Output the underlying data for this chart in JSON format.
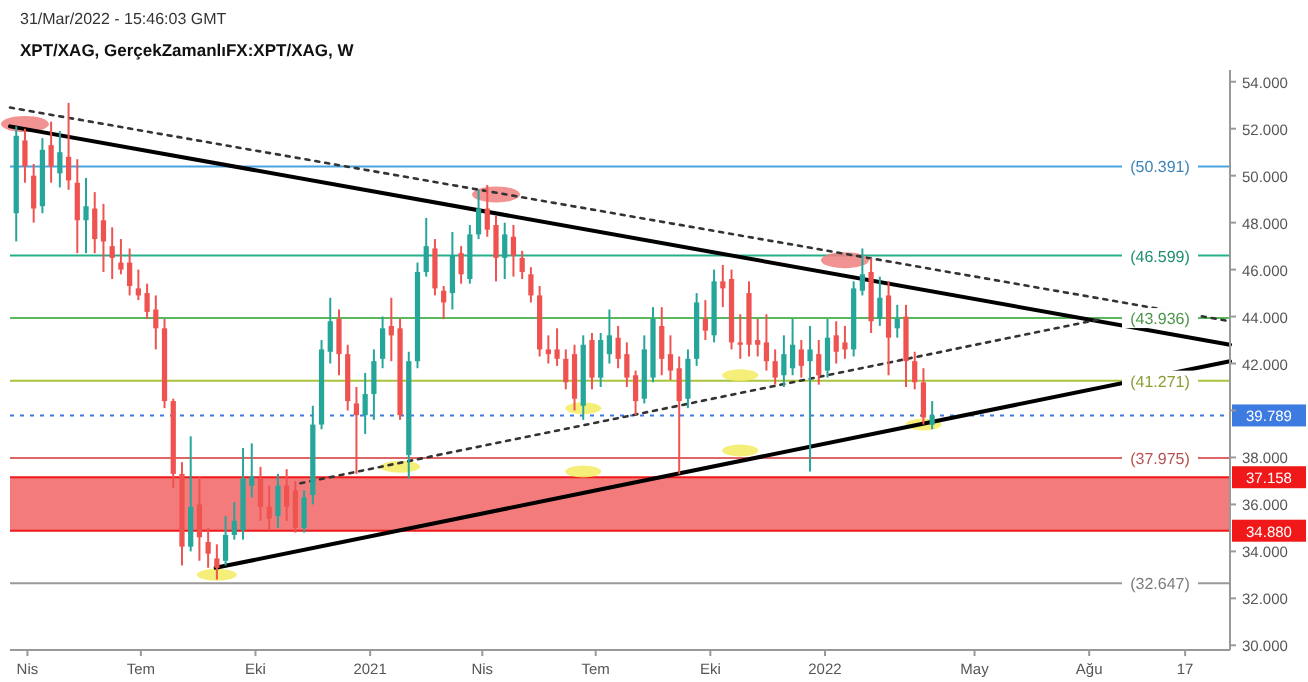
{
  "chart_data": {
    "type": "candlestick",
    "title": "31/Mar/2022 - 15:46:03 GMT",
    "subtitle": "XPT/XAG, GerçekZamanlıFX:XPT/XAG, W",
    "x": [
      "2020-03-23",
      "2020-03-30",
      "2020-04-06",
      "2020-04-13",
      "2020-04-20",
      "2020-04-27",
      "2020-05-04",
      "2020-05-11",
      "2020-05-18",
      "2020-05-25",
      "2020-06-01",
      "2020-06-08",
      "2020-06-15",
      "2020-06-22",
      "2020-06-29",
      "2020-07-06",
      "2020-07-13",
      "2020-07-20",
      "2020-07-27",
      "2020-08-03",
      "2020-08-10",
      "2020-08-17",
      "2020-08-24",
      "2020-08-31",
      "2020-09-07",
      "2020-09-14",
      "2020-09-21",
      "2020-09-28",
      "2020-10-05",
      "2020-10-12",
      "2020-10-19",
      "2020-10-26",
      "2020-11-02",
      "2020-11-09",
      "2020-11-16",
      "2020-11-23",
      "2020-11-30",
      "2020-12-07",
      "2020-12-14",
      "2020-12-21",
      "2020-12-28",
      "2021-01-04",
      "2021-01-11",
      "2021-01-18",
      "2021-01-25",
      "2021-02-01",
      "2021-02-08",
      "2021-02-15",
      "2021-02-22",
      "2021-03-01",
      "2021-03-08",
      "2021-03-15",
      "2021-03-22",
      "2021-03-29",
      "2021-04-05",
      "2021-04-12",
      "2021-04-19",
      "2021-04-26",
      "2021-05-03",
      "2021-05-10",
      "2021-05-17",
      "2021-05-24",
      "2021-05-31",
      "2021-06-07",
      "2021-06-14",
      "2021-06-21",
      "2021-06-28",
      "2021-07-05",
      "2021-07-12",
      "2021-07-19",
      "2021-07-26",
      "2021-08-02",
      "2021-08-09",
      "2021-08-16",
      "2021-08-23",
      "2021-08-30",
      "2021-09-06",
      "2021-09-13",
      "2021-09-20",
      "2021-09-27",
      "2021-10-04",
      "2021-10-11",
      "2021-10-18",
      "2021-10-25",
      "2021-11-01",
      "2021-11-08",
      "2021-11-15",
      "2021-11-22",
      "2021-11-29",
      "2021-12-06",
      "2021-12-13",
      "2021-12-20",
      "2021-12-27",
      "2022-01-03",
      "2022-01-10",
      "2022-01-17",
      "2022-01-24",
      "2022-01-31",
      "2022-02-07",
      "2022-02-14",
      "2022-02-21",
      "2022-02-28",
      "2022-03-07",
      "2022-03-14",
      "2022-03-21",
      "2022-03-28"
    ],
    "ohlc": [
      [
        48.4,
        52.1,
        47.2,
        51.7
      ],
      [
        51.5,
        52.0,
        49.7,
        50.4
      ],
      [
        50.0,
        50.5,
        48.0,
        48.6
      ],
      [
        48.7,
        51.6,
        48.4,
        51.1
      ],
      [
        51.3,
        52.3,
        49.7,
        50.4
      ],
      [
        50.1,
        51.9,
        49.5,
        51.0
      ],
      [
        50.8,
        53.1,
        49.4,
        49.8
      ],
      [
        49.7,
        50.7,
        46.7,
        48.1
      ],
      [
        48.1,
        49.9,
        46.7,
        48.7
      ],
      [
        48.6,
        49.3,
        46.7,
        47.3
      ],
      [
        48.1,
        48.8,
        45.9,
        47.2
      ],
      [
        47.0,
        47.8,
        45.6,
        46.5
      ],
      [
        46.3,
        47.3,
        45.8,
        46.0
      ],
      [
        46.3,
        46.9,
        44.9,
        45.3
      ],
      [
        45.2,
        46.0,
        44.7,
        44.9
      ],
      [
        45.0,
        45.4,
        43.9,
        44.2
      ],
      [
        44.3,
        44.9,
        42.6,
        43.5
      ],
      [
        43.5,
        43.9,
        40.1,
        40.4
      ],
      [
        40.4,
        40.5,
        36.7,
        37.3
      ],
      [
        37.3,
        37.8,
        33.4,
        34.2
      ],
      [
        34.2,
        38.9,
        34.0,
        35.9
      ],
      [
        36.0,
        37.2,
        33.6,
        34.6
      ],
      [
        34.4,
        35.0,
        33.3,
        33.9
      ],
      [
        33.7,
        34.3,
        32.8,
        33.3
      ],
      [
        33.6,
        35.5,
        33.4,
        34.7
      ],
      [
        34.7,
        36.1,
        34.5,
        35.3
      ],
      [
        34.9,
        38.4,
        34.5,
        37.1
      ],
      [
        36.8,
        38.6,
        36.3,
        37.2
      ],
      [
        37.1,
        37.6,
        35.3,
        35.9
      ],
      [
        35.9,
        36.8,
        34.9,
        35.4
      ],
      [
        35.5,
        37.3,
        35.0,
        36.8
      ],
      [
        36.8,
        37.5,
        35.3,
        35.9
      ],
      [
        36.6,
        37.0,
        34.8,
        35.0
      ],
      [
        35.0,
        36.6,
        34.8,
        36.3
      ],
      [
        36.4,
        40.2,
        36.0,
        39.4
      ],
      [
        39.4,
        43.0,
        39.2,
        42.6
      ],
      [
        42.5,
        44.8,
        42.0,
        43.8
      ],
      [
        43.9,
        44.3,
        41.5,
        42.4
      ],
      [
        42.4,
        42.8,
        40.0,
        40.4
      ],
      [
        40.3,
        41.0,
        37.3,
        39.8
      ],
      [
        39.8,
        41.6,
        39.0,
        40.7
      ],
      [
        40.7,
        42.6,
        39.6,
        42.1
      ],
      [
        42.2,
        44.0,
        41.8,
        43.5
      ],
      [
        43.6,
        44.8,
        42.1,
        43.2
      ],
      [
        43.5,
        43.9,
        39.6,
        39.8
      ],
      [
        38.1,
        42.5,
        37.1,
        42.1
      ],
      [
        42.1,
        46.3,
        41.8,
        45.9
      ],
      [
        45.9,
        48.2,
        45.7,
        47.0
      ],
      [
        46.9,
        47.3,
        44.9,
        45.2
      ],
      [
        45.1,
        45.3,
        43.9,
        44.6
      ],
      [
        45.0,
        47.6,
        44.3,
        46.6
      ],
      [
        46.7,
        47.0,
        45.4,
        45.8
      ],
      [
        45.6,
        47.9,
        45.4,
        47.5
      ],
      [
        47.5,
        49.4,
        47.3,
        48.6
      ],
      [
        48.6,
        49.6,
        47.4,
        47.7
      ],
      [
        47.9,
        48.3,
        45.5,
        46.5
      ],
      [
        46.5,
        48.0,
        45.6,
        47.5
      ],
      [
        47.4,
        47.9,
        45.7,
        46.6
      ],
      [
        46.5,
        46.8,
        45.6,
        45.9
      ],
      [
        45.8,
        46.1,
        44.6,
        44.9
      ],
      [
        44.9,
        45.3,
        42.3,
        42.6
      ],
      [
        42.6,
        43.2,
        42.0,
        42.4
      ],
      [
        42.6,
        43.5,
        41.9,
        42.2
      ],
      [
        42.2,
        42.6,
        40.9,
        41.2
      ],
      [
        42.4,
        42.8,
        40.0,
        40.5
      ],
      [
        40.2,
        43.2,
        39.6,
        42.8
      ],
      [
        43.0,
        43.3,
        40.9,
        41.4
      ],
      [
        41.4,
        43.3,
        41.0,
        43.0
      ],
      [
        42.4,
        44.3,
        42.0,
        43.2
      ],
      [
        43.1,
        43.6,
        41.8,
        42.2
      ],
      [
        42.4,
        42.9,
        41.0,
        41.4
      ],
      [
        41.5,
        41.7,
        39.8,
        40.4
      ],
      [
        40.5,
        43.2,
        40.3,
        42.6
      ],
      [
        41.4,
        44.4,
        41.2,
        43.9
      ],
      [
        43.6,
        44.4,
        41.5,
        42.2
      ],
      [
        42.4,
        43.2,
        41.3,
        41.7
      ],
      [
        41.8,
        42.3,
        37.3,
        40.4
      ],
      [
        40.5,
        42.6,
        40.1,
        42.2
      ],
      [
        42.2,
        45.0,
        41.9,
        44.6
      ],
      [
        43.9,
        44.7,
        43.0,
        43.4
      ],
      [
        43.2,
        46.0,
        42.9,
        45.5
      ],
      [
        45.5,
        46.2,
        44.4,
        45.2
      ],
      [
        45.6,
        46.0,
        42.6,
        42.9
      ],
      [
        42.9,
        44.1,
        42.2,
        42.8
      ],
      [
        45.0,
        45.5,
        42.3,
        42.8
      ],
      [
        43.0,
        43.9,
        42.3,
        42.8
      ],
      [
        42.9,
        44.1,
        41.7,
        42.1
      ],
      [
        42.1,
        42.6,
        41.1,
        41.4
      ],
      [
        41.5,
        43.2,
        41.0,
        42.4
      ],
      [
        41.8,
        43.9,
        41.5,
        42.8
      ],
      [
        42.6,
        43.0,
        41.4,
        41.9
      ],
      [
        42.1,
        43.6,
        37.4,
        42.6
      ],
      [
        42.4,
        43.0,
        41.1,
        41.5
      ],
      [
        41.7,
        43.9,
        41.4,
        43.1
      ],
      [
        43.2,
        43.8,
        42.0,
        42.5
      ],
      [
        42.9,
        43.6,
        42.2,
        42.6
      ],
      [
        42.6,
        45.5,
        42.3,
        45.2
      ],
      [
        45.1,
        46.9,
        44.9,
        45.8
      ],
      [
        45.9,
        46.5,
        43.3,
        43.8
      ],
      [
        43.9,
        45.7,
        43.6,
        44.8
      ],
      [
        44.9,
        45.5,
        41.5,
        43.1
      ],
      [
        43.5,
        44.5,
        43.1,
        43.9
      ],
      [
        44.0,
        44.5,
        41.0,
        42.1
      ],
      [
        42.1,
        42.5,
        40.9,
        41.2
      ],
      [
        41.2,
        41.8,
        39.4,
        39.7
      ],
      [
        39.4,
        40.4,
        39.2,
        39.789
      ]
    ],
    "series": [
      {
        "type": "line",
        "color": "#000000",
        "line_style": "solid",
        "x": [
          "2020-03-18",
          "2022-11-22"
        ],
        "values": [
          52.1,
          42.8
        ]
      },
      {
        "type": "line",
        "color": "#000000",
        "line_style": "solid",
        "x": [
          "2020-08-30",
          "2022-11-22"
        ],
        "values": [
          33.3,
          42.1
        ]
      },
      {
        "type": "line",
        "color": "#333333",
        "line_style": "dotted",
        "x": [
          "2020-03-18",
          "2022-11-22"
        ],
        "values": [
          52.9,
          43.8
        ]
      },
      {
        "type": "line",
        "color": "#333333",
        "line_style": "dotted",
        "x": [
          "2020-11-06",
          "2022-08-11"
        ],
        "values": [
          36.9,
          43.9
        ]
      }
    ],
    "ref_lines": [
      {
        "axis": "y",
        "value": 50.391,
        "label": "(50.391)",
        "color": "#4aa3df",
        "line_style": "solid"
      },
      {
        "axis": "y",
        "value": 46.599,
        "label": "(46.599)",
        "color": "#26b08a",
        "line_style": "solid"
      },
      {
        "axis": "y",
        "value": 43.936,
        "label": "(43.936)",
        "color": "#5cb85c",
        "line_style": "solid"
      },
      {
        "axis": "y",
        "value": 41.271,
        "label": "(41.271)",
        "color": "#a8c43c",
        "line_style": "solid"
      },
      {
        "axis": "y",
        "value": 39.789,
        "label": "39.789",
        "color": "#3d7be0",
        "line_style": "dotted"
      },
      {
        "axis": "y",
        "value": 37.975,
        "label": "(37.975)",
        "color": "#e06666",
        "line_style": "solid"
      },
      {
        "axis": "y",
        "value": 37.158,
        "label": "37.158",
        "color": "#f01818",
        "line_style": "solid"
      },
      {
        "axis": "y",
        "value": 34.88,
        "label": "34.880",
        "color": "#f01818",
        "line_style": "solid"
      },
      {
        "axis": "y",
        "value": 32.647,
        "label": "(32.647)",
        "color": "#999999",
        "line_style": "solid"
      }
    ],
    "bands": [
      {
        "axis": "y",
        "from": 34.88,
        "to": 37.158,
        "color": "#f26d6d"
      }
    ],
    "xlim": [
      "2020-03-18",
      "2022-11-22"
    ],
    "xticks": [
      {
        "value": "2020-04-01",
        "label": "Nis"
      },
      {
        "value": "2020-07-01",
        "label": "Tem"
      },
      {
        "value": "2020-10-01",
        "label": "Eki"
      },
      {
        "value": "2021-01-01",
        "label": "2021"
      },
      {
        "value": "2021-04-01",
        "label": "Nis"
      },
      {
        "value": "2021-07-01",
        "label": "Tem"
      },
      {
        "value": "2021-10-01",
        "label": "Eki"
      },
      {
        "value": "2022-01-01",
        "label": "2022"
      },
      {
        "value": "2022-05-01",
        "label": "May"
      },
      {
        "value": "2022-08-01",
        "label": "Ağu"
      },
      {
        "value": "2022-10-17",
        "label": "17"
      }
    ],
    "ylim": [
      29.8,
      54.5
    ],
    "yticks": [
      {
        "value": 30,
        "label": "30.000"
      },
      {
        "value": 32,
        "label": "32.000"
      },
      {
        "value": 34,
        "label": "34.000"
      },
      {
        "value": 36,
        "label": "36.000"
      },
      {
        "value": 38,
        "label": "38.000"
      },
      {
        "value": 40,
        "label": null
      },
      {
        "value": 42,
        "label": "42.000"
      },
      {
        "value": 44,
        "label": "44.000"
      },
      {
        "value": 46,
        "label": "46.000"
      },
      {
        "value": 48,
        "label": "48.000"
      },
      {
        "value": 50,
        "label": "50.000"
      },
      {
        "value": 52,
        "label": "52.000"
      },
      {
        "value": 54,
        "label": "54.000"
      }
    ]
  }
}
